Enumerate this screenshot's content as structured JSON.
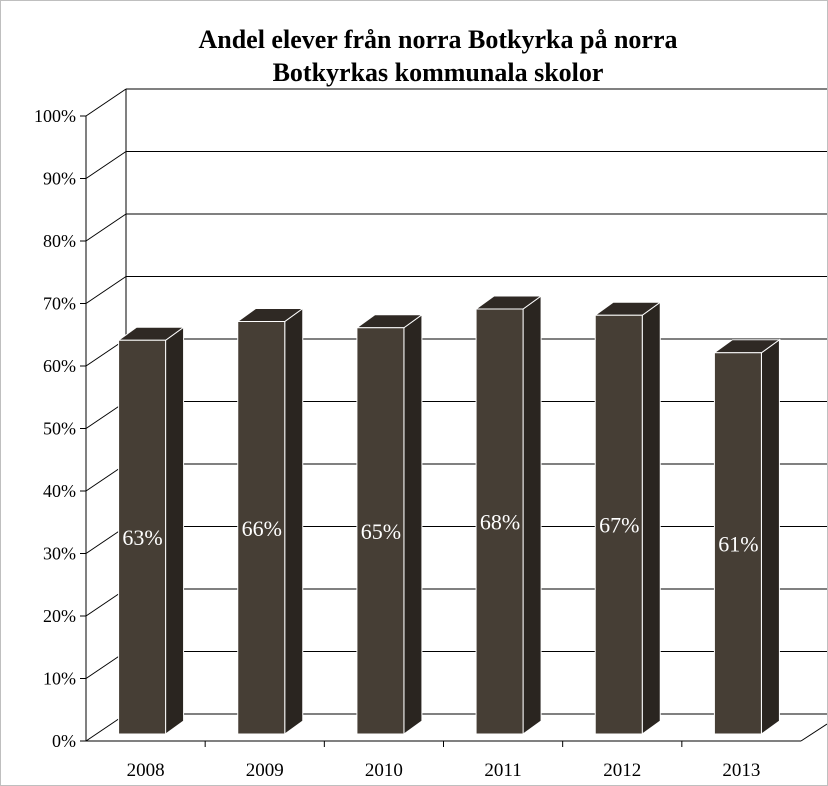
{
  "chart_data": {
    "type": "bar",
    "title_lines": [
      "Andel elever från norra Botkyrka på norra",
      "Botkyrkas kommunala skolor"
    ],
    "categories": [
      "2008",
      "2009",
      "2010",
      "2011",
      "2012",
      "2013"
    ],
    "values": [
      63,
      66,
      65,
      68,
      67,
      61
    ],
    "data_labels": [
      "63%",
      "66%",
      "65%",
      "68%",
      "67%",
      "61%"
    ],
    "y_ticks": [
      "0%",
      "10%",
      "20%",
      "30%",
      "40%",
      "50%",
      "60%",
      "70%",
      "80%",
      "90%",
      "100%"
    ],
    "ylim": [
      0,
      100
    ],
    "xlabel": "",
    "ylabel": "",
    "grid": true,
    "style": "3d-column",
    "colors": {
      "bar_front": "#463e35",
      "bar_side": "#2a2520",
      "bar_top": "#2f2924",
      "bar_edge": "#ffffff",
      "grid": "#000000"
    }
  }
}
